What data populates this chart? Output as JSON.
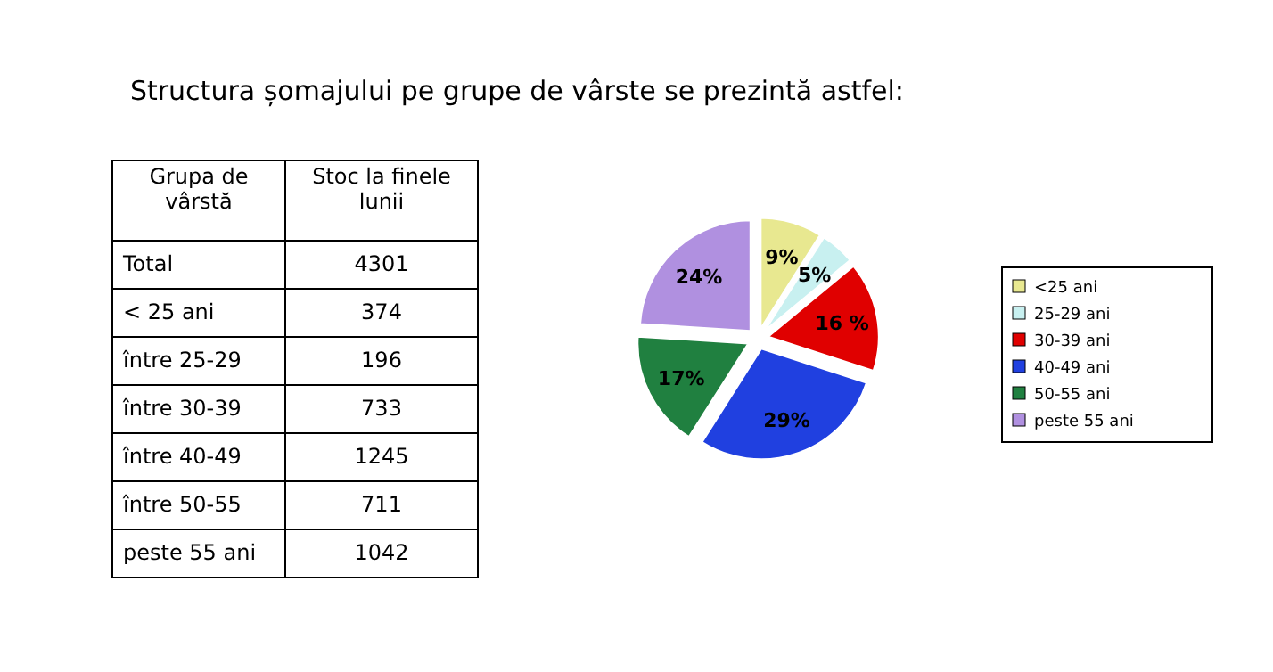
{
  "chart_data": [
    {
      "type": "other",
      "title": "Structura șomajului pe grupe de vârste se prezintă astfel:",
      "xlabel": "Grupa de vârstă",
      "ylabel": "Stoc la finele lunii",
      "categories": [
        "Total",
        "< 25 ani",
        "între 25-29",
        "între 30-39",
        "între 40-49",
        "între 50-55",
        "peste 55 ani"
      ],
      "values": [
        4301,
        374,
        196,
        733,
        1245,
        711,
        1042
      ],
      "data_labels": true
    },
    {
      "type": "pie",
      "categories": [
        "<25 ani",
        "25-29 ani",
        "30-39 ani",
        "40-49 ani",
        "50-55 ani",
        "peste 55 ani"
      ],
      "values": [
        9,
        5,
        16,
        29,
        17,
        24
      ],
      "colors": [
        "#e8e890",
        "#c8f0f0",
        "#e00000",
        "#2040e0",
        "#208040",
        "#b090e0"
      ],
      "value_labels": [
        "9%",
        "5%",
        "16 %",
        "29%",
        "17%",
        "24%"
      ],
      "legend": "right"
    }
  ]
}
